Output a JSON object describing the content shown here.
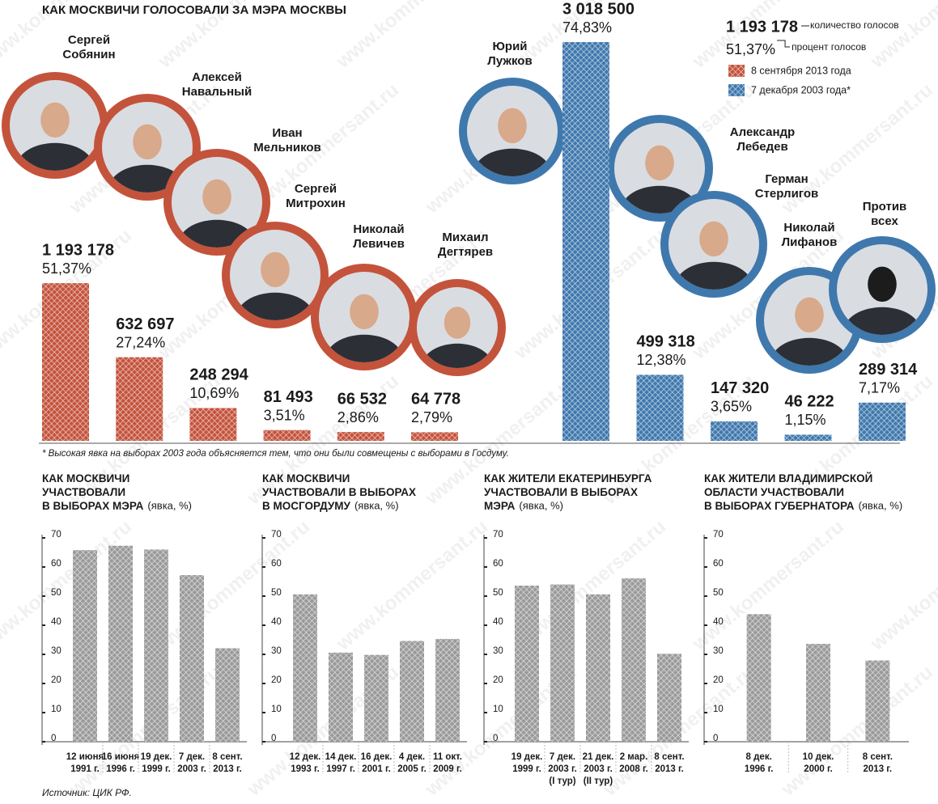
{
  "chart_data": [
    {
      "type": "bar",
      "title": "КАК МОСКВИЧИ ГОЛОСОВАЛИ ЗА МЭРА МОСКВЫ",
      "legend_example": {
        "value_label": "1 193 178",
        "value_text": "количество голосов",
        "share_label": "51,37%",
        "share_text": "процент голосов"
      },
      "series": [
        {
          "name": "8 сентября 2013 года",
          "color": "#c4533c",
          "categories": [
            "Сергей\nСобянин",
            "Алексей\nНавальный",
            "Иван\nМельников",
            "Сергей\nМитрохин",
            "Николай\nЛевичев",
            "Михаил\nДегтярев"
          ],
          "values": [
            1193178,
            632697,
            248294,
            81493,
            66532,
            64778
          ],
          "value_labels": [
            "1 193 178",
            "632 697",
            "248 294",
            "81 493",
            "66 532",
            "64 778"
          ],
          "shares": [
            51.37,
            27.24,
            10.69,
            3.51,
            2.86,
            2.79
          ],
          "share_labels": [
            "51,37%",
            "27,24%",
            "10,69%",
            "3,51%",
            "2,86%",
            "2,79%"
          ]
        },
        {
          "name": "7 декабря 2003 года*",
          "color": "#3f78ad",
          "categories": [
            "Юрий\nЛужков",
            "Александр\nЛебедев",
            "Герман\nСтерлигов",
            "Николай\nЛифанов",
            "Против\nвсех"
          ],
          "values": [
            3018500,
            499318,
            147320,
            46222,
            289314
          ],
          "value_labels": [
            "3 018 500",
            "499 318",
            "147 320",
            "46 222",
            "289 314"
          ],
          "shares": [
            74.83,
            12.38,
            3.65,
            1.15,
            7.17
          ],
          "share_labels": [
            "74,83%",
            "12,38%",
            "3,65%",
            "1,15%",
            "7,17%"
          ]
        }
      ],
      "footnote": "* Высокая явка на выборах 2003 года объясняется тем, что они были совмещены с выборами в Госдуму."
    },
    {
      "type": "bar",
      "title": "КАК МОСКВИЧИ\nУЧАСТВОВАЛИ\nВ ВЫБОРАХ МЭРА",
      "unit": "(явка, %)",
      "categories": [
        "12 июня\n1991 г.",
        "16 июня\n1996 г.",
        "19 дек.\n1999 г.",
        "7 дек.\n2003 г.",
        "8 сент.\n2013 г."
      ],
      "values": [
        65.8,
        67.3,
        66.0,
        57.2,
        32.1
      ],
      "color": "#9a9a9a",
      "ylim": [
        0,
        70
      ],
      "yticks": [
        0,
        10,
        20,
        30,
        40,
        50,
        60,
        70
      ]
    },
    {
      "type": "bar",
      "title": "КАК МОСКВИЧИ\nУЧАСТВОВАЛИ В ВЫБОРАХ\nВ МОСГОРДУМУ",
      "unit": "(явка, %)",
      "categories": [
        "12 дек.\n1993 г.",
        "14 дек.\n1997 г.",
        "16 дек.\n2001 г.",
        "4 дек.\n2005 г.",
        "11 окт.\n2009 г."
      ],
      "values": [
        50.6,
        30.6,
        29.8,
        34.6,
        35.3
      ],
      "color": "#9a9a9a",
      "ylim": [
        0,
        70
      ],
      "yticks": [
        0,
        10,
        20,
        30,
        40,
        50,
        60,
        70
      ]
    },
    {
      "type": "bar",
      "title": "КАК ЖИТЕЛИ ЕКАТЕРИНБУРГА\nУЧАСТВОВАЛИ В ВЫБОРАХ\nМЭРА",
      "unit": "(явка, %)",
      "categories": [
        "19 дек.\n1999 г.",
        "7 дек.\n2003 г.\n(I тур)",
        "21 дек.\n2003 г.\n(II тур)",
        "2 мар.\n2008 г.",
        "8 сент.\n2013 г."
      ],
      "values": [
        53.6,
        54.0,
        50.6,
        56.1,
        30.2
      ],
      "color": "#9a9a9a",
      "ylim": [
        0,
        70
      ],
      "yticks": [
        0,
        10,
        20,
        30,
        40,
        50,
        60,
        70
      ]
    },
    {
      "type": "bar",
      "title": "КАК ЖИТЕЛИ ВЛАДИМИРСКОЙ\nОБЛАСТИ УЧАСТВОВАЛИ\nВ ВЫБОРАХ ГУБЕРНАТОРА",
      "unit": "(явка, %)",
      "categories": [
        "8 дек.\n1996 г.",
        "10 дек.\n2000 г.",
        "8 сент.\n2013 г."
      ],
      "values": [
        43.8,
        33.6,
        27.9
      ],
      "color": "#9a9a9a",
      "ylim": [
        0,
        70
      ],
      "yticks": [
        0,
        10,
        20,
        30,
        40,
        50,
        60,
        70
      ]
    }
  ],
  "source": "Источник: ЦИК РФ.",
  "watermark": "www.kommersant.ru"
}
